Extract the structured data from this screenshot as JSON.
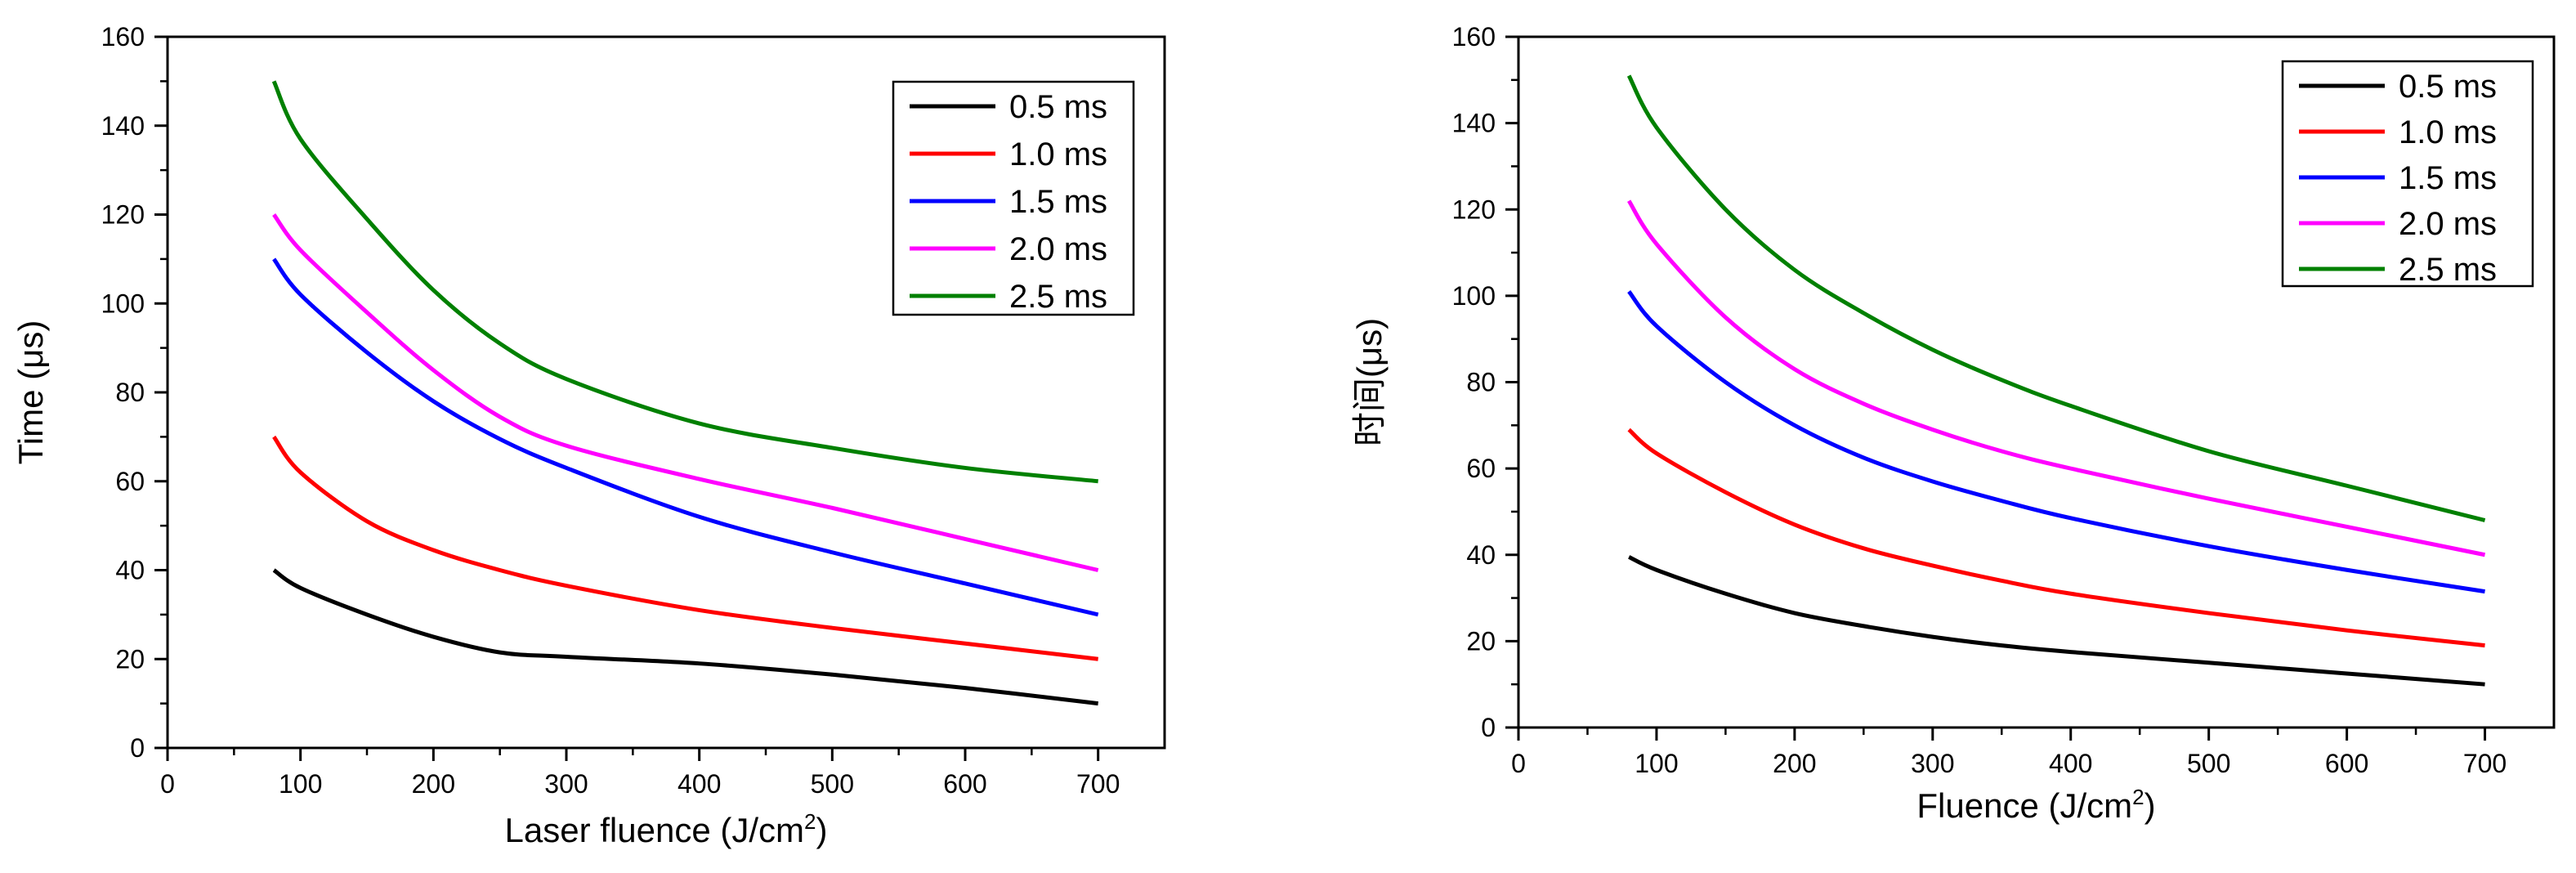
{
  "chart_data": [
    {
      "type": "line",
      "title": "",
      "xlabel": "Laser fluence (J/cm",
      "xlabel_sup": "2",
      "xlabel_tail": ")",
      "ylabel": "Time (μs)",
      "xlim": [
        0,
        750
      ],
      "ylim": [
        0,
        160
      ],
      "xticks": [
        0,
        100,
        200,
        300,
        400,
        500,
        600,
        700
      ],
      "yticks": [
        0,
        20,
        40,
        60,
        80,
        100,
        120,
        140,
        160
      ],
      "legend_position": "top-right",
      "x": [
        80,
        100,
        150,
        200,
        250,
        300,
        400,
        500,
        600,
        700
      ],
      "series": [
        {
          "name": "0.5 ms",
          "color": "#000000",
          "values": [
            40,
            36,
            30,
            25,
            21.5,
            20.5,
            19,
            16.5,
            13.5,
            10
          ]
        },
        {
          "name": "1.0 ms",
          "color": "#ff0000",
          "values": [
            70,
            62,
            51,
            44.5,
            40,
            36.5,
            31,
            27,
            23.5,
            20
          ]
        },
        {
          "name": "1.5 ms",
          "color": "#0000ff",
          "values": [
            110,
            102,
            89,
            78,
            69.5,
            63,
            52,
            44,
            37,
            30
          ]
        },
        {
          "name": "2.0 ms",
          "color": "#ff00ff",
          "values": [
            120,
            112,
            98,
            85,
            74.5,
            68,
            60.5,
            54,
            47,
            40
          ]
        },
        {
          "name": "2.5 ms",
          "color": "#008000",
          "values": [
            150,
            137,
            119,
            103,
            91,
            83,
            73,
            67.5,
            63,
            60
          ]
        }
      ]
    },
    {
      "type": "line",
      "title": "",
      "xlabel": "Fluence (J/cm",
      "xlabel_sup": "2",
      "xlabel_tail": ")",
      "ylabel": "时间(μs)",
      "xlim": [
        0,
        750
      ],
      "ylim": [
        0,
        160
      ],
      "xticks": [
        0,
        100,
        200,
        300,
        400,
        500,
        600,
        700
      ],
      "yticks": [
        0,
        20,
        40,
        60,
        80,
        100,
        120,
        140,
        160
      ],
      "legend_position": "top-right",
      "x": [
        80,
        100,
        150,
        200,
        250,
        300,
        350,
        400,
        500,
        600,
        700
      ],
      "series": [
        {
          "name": "0.5 ms",
          "color": "#000000",
          "values": [
            39.5,
            36.5,
            31,
            26.5,
            23.5,
            21,
            19,
            17.5,
            15,
            12.5,
            10
          ]
        },
        {
          "name": "1.0 ms",
          "color": "#ff0000",
          "values": [
            69,
            63.5,
            54.5,
            47,
            41.5,
            37.5,
            34,
            31,
            26.5,
            22.5,
            19
          ]
        },
        {
          "name": "1.5 ms",
          "color": "#0000ff",
          "values": [
            101,
            93,
            80,
            70,
            62.5,
            57,
            52.5,
            48.5,
            42,
            36.5,
            31.5
          ]
        },
        {
          "name": "2.0 ms",
          "color": "#ff00ff",
          "values": [
            122,
            112,
            95,
            83,
            75,
            69,
            64,
            60,
            53,
            46.5,
            40
          ]
        },
        {
          "name": "2.5 ms",
          "color": "#008000",
          "values": [
            151,
            139,
            120,
            106,
            96,
            87.5,
            80.5,
            74.5,
            64,
            56,
            48
          ]
        }
      ]
    }
  ]
}
